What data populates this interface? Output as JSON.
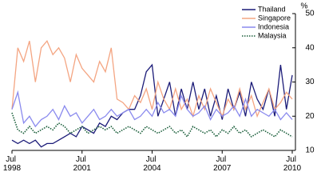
{
  "chart_data": {
    "type": "line",
    "y_unit": "%",
    "x": [
      1998.5,
      1998.75,
      1999,
      1999.25,
      1999.5,
      1999.75,
      2000,
      2000.25,
      2000.5,
      2000.75,
      2001,
      2001.25,
      2001.5,
      2001.75,
      2002,
      2002.25,
      2002.5,
      2002.75,
      2003,
      2003.25,
      2003.5,
      2003.75,
      2004,
      2004.25,
      2004.5,
      2004.75,
      2005,
      2005.25,
      2005.5,
      2005.75,
      2006,
      2006.25,
      2006.5,
      2006.75,
      2007,
      2007.25,
      2007.5,
      2007.75,
      2008,
      2008.25,
      2008.5,
      2008.75,
      2009,
      2009.25,
      2009.5,
      2009.75,
      2010,
      2010.25,
      2010.5
    ],
    "xlim": [
      1998.5,
      2010.5
    ],
    "xticks": [
      {
        "value": 1998.5,
        "label": "Jul 1998"
      },
      {
        "value": 2001.5,
        "label": "Jul 2001"
      },
      {
        "value": 2004.5,
        "label": "Jul 2004"
      },
      {
        "value": 2007.5,
        "label": "Jul 2007"
      },
      {
        "value": 2010.5,
        "label": "Jul 2010"
      }
    ],
    "ylim": [
      10,
      50
    ],
    "yticks": [
      10,
      20,
      30,
      40,
      50
    ],
    "series": [
      {
        "name": "Thailand",
        "color": "#1b1b78",
        "dash": false,
        "values": [
          13,
          12,
          13,
          12,
          13,
          11,
          12,
          12,
          13,
          14,
          15,
          14,
          17,
          16,
          15,
          18,
          17,
          20,
          19,
          21,
          22,
          22,
          26,
          33,
          35,
          20,
          25,
          30,
          20,
          28,
          22,
          30,
          22,
          28,
          20,
          26,
          19,
          28,
          22,
          27,
          20,
          30,
          25,
          22,
          28,
          20,
          35,
          22,
          32
        ]
      },
      {
        "name": "Singapore",
        "color": "#f4a582",
        "dash": false,
        "values": [
          22,
          40,
          36,
          42,
          30,
          40,
          42,
          38,
          40,
          37,
          30,
          38,
          34,
          32,
          30,
          36,
          33,
          40,
          25,
          24,
          22,
          26,
          24,
          28,
          22,
          30,
          25,
          22,
          28,
          22,
          25,
          20,
          26,
          22,
          28,
          24,
          20,
          25,
          22,
          28,
          22,
          26,
          20,
          24,
          28,
          22,
          24,
          27,
          25
        ]
      },
      {
        "name": "Indonesia",
        "color": "#8a8aee",
        "dash": false,
        "values": [
          22,
          27,
          18,
          20,
          17,
          19,
          20,
          22,
          19,
          23,
          20,
          21,
          18,
          20,
          22,
          19,
          20,
          22,
          20,
          21,
          22,
          19,
          20,
          22,
          20,
          24,
          21,
          22,
          20,
          26,
          22,
          20,
          21,
          23,
          19,
          22,
          20,
          21,
          23,
          20,
          25,
          20,
          22,
          21,
          20,
          22,
          19,
          21,
          19
        ]
      },
      {
        "name": "Malaysia",
        "color": "#1a5e3a",
        "dash": true,
        "values": [
          21,
          16,
          15,
          17,
          15,
          16,
          17,
          16,
          18,
          17,
          15,
          16,
          17,
          15,
          16,
          17,
          16,
          17,
          15,
          16,
          17,
          16,
          15,
          17,
          16,
          15,
          16,
          17,
          15,
          16,
          14,
          17,
          16,
          15,
          16,
          14,
          16,
          15,
          17,
          15,
          16,
          14,
          15,
          16,
          15,
          14,
          16,
          15,
          14
        ]
      }
    ]
  }
}
